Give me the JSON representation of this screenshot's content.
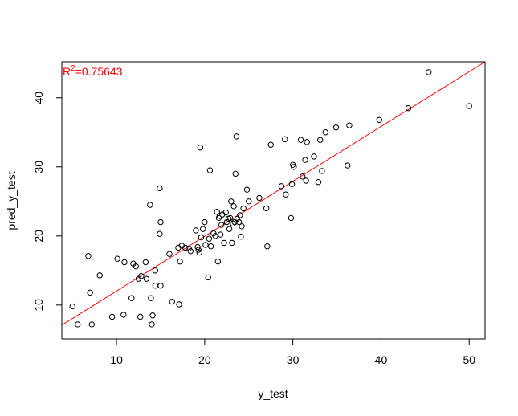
{
  "chart_data": {
    "type": "scatter",
    "xlabel": "y_test",
    "ylabel": "pred_y_test",
    "xlim": [
      3.8,
      51.8
    ],
    "ylim": [
      5.1,
      45.2
    ],
    "x_ticks": [
      10,
      20,
      30,
      40,
      50
    ],
    "y_ticks": [
      10,
      20,
      30,
      40
    ],
    "grid": false,
    "annotation": {
      "prefix": "R",
      "superscript": "2",
      "value_text": "=0.75643",
      "color": "#ff0000"
    },
    "fit_line": {
      "color": "#ff0000",
      "start": [
        3.8,
        7.1
      ],
      "end": [
        51.8,
        45.2
      ]
    },
    "series": [
      {
        "marker": "open-circle",
        "color": "#000000",
        "points": [
          [
            5.0,
            9.8
          ],
          [
            5.6,
            7.2
          ],
          [
            6.8,
            17.1
          ],
          [
            7.0,
            11.8
          ],
          [
            7.2,
            7.2
          ],
          [
            8.1,
            14.3
          ],
          [
            9.5,
            8.3
          ],
          [
            10.1,
            16.7
          ],
          [
            10.8,
            8.6
          ],
          [
            10.9,
            16.2
          ],
          [
            11.7,
            11.0
          ],
          [
            11.9,
            16.0
          ],
          [
            12.2,
            15.6
          ],
          [
            12.5,
            13.8
          ],
          [
            12.7,
            8.3
          ],
          [
            12.8,
            14.2
          ],
          [
            13.3,
            16.2
          ],
          [
            13.4,
            13.8
          ],
          [
            13.8,
            24.5
          ],
          [
            13.9,
            11.0
          ],
          [
            14.0,
            7.2
          ],
          [
            14.1,
            8.5
          ],
          [
            14.4,
            15.0
          ],
          [
            14.4,
            12.8
          ],
          [
            14.9,
            26.9
          ],
          [
            14.9,
            20.3
          ],
          [
            15.0,
            22.0
          ],
          [
            15.0,
            12.8
          ],
          [
            16.0,
            17.4
          ],
          [
            16.3,
            10.5
          ],
          [
            17.0,
            18.3
          ],
          [
            17.1,
            10.1
          ],
          [
            17.2,
            16.3
          ],
          [
            17.4,
            18.6
          ],
          [
            17.8,
            18.3
          ],
          [
            18.2,
            18.2
          ],
          [
            18.4,
            17.8
          ],
          [
            19.0,
            20.8
          ],
          [
            19.2,
            18.4
          ],
          [
            19.3,
            18.0
          ],
          [
            19.4,
            17.6
          ],
          [
            19.5,
            32.8
          ],
          [
            19.6,
            19.8
          ],
          [
            19.8,
            21.0
          ],
          [
            20.0,
            22.0
          ],
          [
            20.1,
            18.7
          ],
          [
            20.4,
            14.0
          ],
          [
            20.5,
            19.6
          ],
          [
            20.6,
            29.5
          ],
          [
            20.7,
            18.5
          ],
          [
            21.0,
            20.4
          ],
          [
            21.2,
            20.0
          ],
          [
            21.4,
            23.5
          ],
          [
            21.5,
            16.3
          ],
          [
            21.6,
            22.6
          ],
          [
            21.7,
            22.9
          ],
          [
            21.8,
            20.2
          ],
          [
            21.9,
            21.6
          ],
          [
            22.0,
            23.1
          ],
          [
            22.2,
            19.0
          ],
          [
            22.4,
            23.4
          ],
          [
            22.5,
            22.0
          ],
          [
            22.7,
            22.5
          ],
          [
            22.8,
            21.0
          ],
          [
            22.9,
            22.6
          ],
          [
            23.0,
            25.0
          ],
          [
            23.1,
            19.0
          ],
          [
            23.2,
            21.8
          ],
          [
            23.3,
            24.3
          ],
          [
            23.4,
            22.0
          ],
          [
            23.5,
            29.0
          ],
          [
            23.6,
            34.4
          ],
          [
            23.7,
            22.5
          ],
          [
            23.9,
            22.0
          ],
          [
            24.0,
            23.0
          ],
          [
            24.1,
            19.9
          ],
          [
            24.2,
            21.4
          ],
          [
            24.4,
            24.0
          ],
          [
            24.8,
            26.7
          ],
          [
            25.0,
            25.0
          ],
          [
            26.2,
            25.5
          ],
          [
            27.0,
            24.0
          ],
          [
            27.1,
            18.5
          ],
          [
            27.5,
            33.2
          ],
          [
            28.7,
            27.2
          ],
          [
            29.1,
            34.0
          ],
          [
            29.2,
            26.0
          ],
          [
            29.8,
            22.6
          ],
          [
            29.9,
            27.5
          ],
          [
            30.0,
            30.3
          ],
          [
            30.1,
            30.0
          ],
          [
            30.9,
            33.9
          ],
          [
            31.1,
            28.6
          ],
          [
            31.4,
            31.0
          ],
          [
            31.5,
            28.0
          ],
          [
            31.6,
            33.6
          ],
          [
            32.4,
            31.5
          ],
          [
            32.9,
            27.8
          ],
          [
            33.1,
            33.9
          ],
          [
            33.3,
            29.4
          ],
          [
            33.7,
            35.0
          ],
          [
            34.9,
            35.7
          ],
          [
            36.2,
            30.2
          ],
          [
            36.4,
            36.0
          ],
          [
            39.8,
            36.8
          ],
          [
            43.1,
            38.5
          ],
          [
            45.4,
            43.7
          ],
          [
            50.0,
            38.8
          ]
        ]
      }
    ]
  }
}
